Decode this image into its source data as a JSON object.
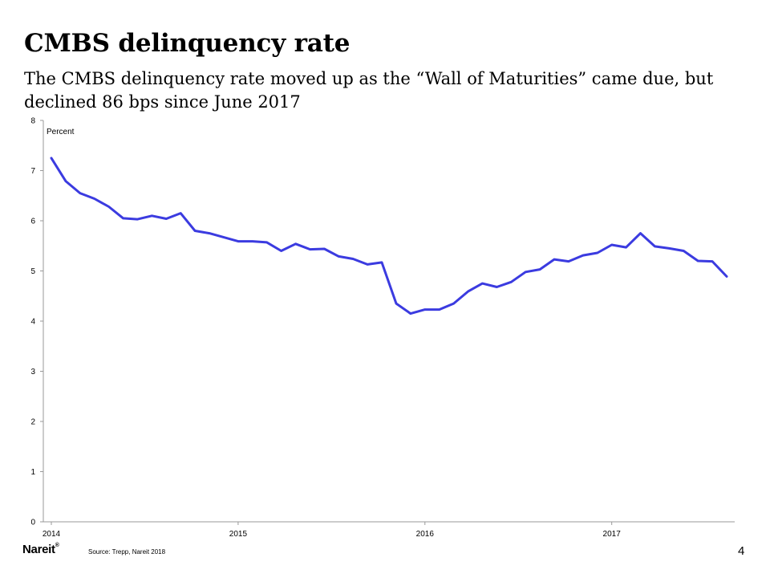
{
  "slide": {
    "title": "CMBS delinquency rate",
    "subtitle": "The CMBS delinquency rate moved up as the “Wall of Maturities” came due, but declined 86 bps since June 2017",
    "source": "Source: Trepp, Nareit 2018",
    "logo": "Nareit",
    "logo_mark": "®",
    "page_number": "4"
  },
  "colors": {
    "line": "#3b3be0",
    "axis": "#999999"
  },
  "chart_data": {
    "type": "line",
    "ylabel": "Percent",
    "ylim": [
      0,
      8
    ],
    "yticks": [
      0,
      1,
      2,
      3,
      4,
      5,
      6,
      7,
      8
    ],
    "xticks": [
      {
        "label": "2014",
        "index": 0
      },
      {
        "label": "2015",
        "index": 13
      },
      {
        "label": "2016",
        "index": 26
      },
      {
        "label": "2017",
        "index": 39
      }
    ],
    "grid": false,
    "legend": "none",
    "series": [
      {
        "values": [
          7.25,
          6.79,
          6.55,
          6.44,
          6.28,
          6.05,
          6.03,
          6.1,
          6.04,
          6.15,
          5.8,
          5.75,
          5.67,
          5.59,
          5.59,
          5.57,
          5.4,
          5.54,
          5.43,
          5.44,
          5.29,
          5.24,
          5.13,
          5.17,
          4.35,
          4.15,
          4.23,
          4.23,
          4.35,
          4.59,
          4.75,
          4.68,
          4.78,
          4.98,
          5.03,
          5.23,
          5.19,
          5.31,
          5.36,
          5.52,
          5.47,
          5.75,
          5.49,
          5.45,
          5.4,
          5.2,
          5.19,
          4.89
        ]
      }
    ]
  }
}
